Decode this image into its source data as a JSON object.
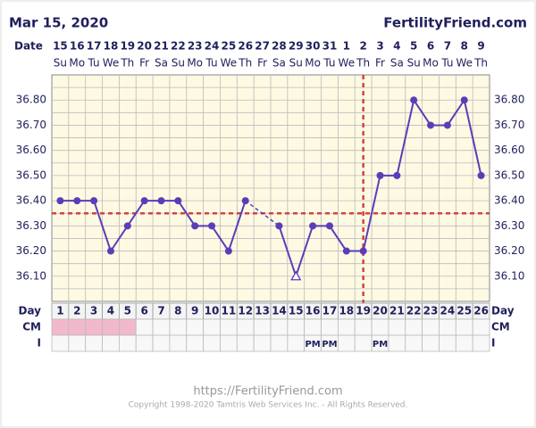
{
  "chart_data": {
    "type": "line",
    "title": "Mar 15, 2020",
    "site": "FertilityFriend.com",
    "date_label": "Date",
    "dates": [
      "15",
      "16",
      "17",
      "18",
      "19",
      "20",
      "21",
      "22",
      "23",
      "24",
      "25",
      "26",
      "27",
      "28",
      "29",
      "30",
      "31",
      "1",
      "2",
      "3",
      "4",
      "5",
      "6",
      "7",
      "8",
      "9"
    ],
    "weekdays": [
      "Su",
      "Mo",
      "Tu",
      "We",
      "Th",
      "Fr",
      "Sa",
      "Su",
      "Mo",
      "Tu",
      "We",
      "Th",
      "Fr",
      "Sa",
      "Su",
      "Mo",
      "Tu",
      "We",
      "Th",
      "Fr",
      "Sa",
      "Su",
      "Mo",
      "Tu",
      "We",
      "Th"
    ],
    "day_label": "Day",
    "days": [
      1,
      2,
      3,
      4,
      5,
      6,
      7,
      8,
      9,
      10,
      11,
      12,
      13,
      14,
      15,
      16,
      17,
      18,
      19,
      20,
      21,
      22,
      23,
      24,
      25,
      26
    ],
    "values": [
      36.4,
      36.4,
      36.4,
      36.2,
      36.3,
      36.4,
      36.4,
      36.4,
      36.3,
      36.3,
      36.2,
      36.4,
      null,
      36.3,
      36.1,
      36.3,
      36.3,
      36.2,
      36.2,
      36.5,
      36.5,
      36.8,
      36.7,
      36.7,
      36.8,
      36.5
    ],
    "discarded": [
      15
    ],
    "color": "#5a3db8",
    "ylim": [
      36.0,
      36.9
    ],
    "yticks": [
      {
        "value": 36.1,
        "label": "36.10"
      },
      {
        "value": 36.2,
        "label": "36.20"
      },
      {
        "value": 36.3,
        "label": "36.30"
      },
      {
        "value": 36.4,
        "label": "36.40"
      },
      {
        "value": 36.5,
        "label": "36.50"
      },
      {
        "value": 36.6,
        "label": "36.60"
      },
      {
        "value": 36.7,
        "label": "36.70"
      },
      {
        "value": 36.8,
        "label": "36.80"
      }
    ],
    "coverline": 36.35,
    "ovulation_day": 19,
    "marker_color": "#d0463f",
    "cm_label": "CM",
    "cm_days": [
      1,
      2,
      3,
      4,
      5
    ],
    "cm_color": "#f2b8cc",
    "i_label": "I",
    "i_entries": [
      null,
      null,
      null,
      null,
      null,
      null,
      null,
      null,
      null,
      null,
      null,
      null,
      null,
      null,
      null,
      "PM",
      "PM",
      null,
      null,
      "PM",
      null,
      null,
      null,
      null,
      null,
      null
    ],
    "footer_url": "https://FertilityFriend.com",
    "copyright": "Copyright 1998-2020 Tamtris Web Services Inc. - All Rights Reserved."
  }
}
